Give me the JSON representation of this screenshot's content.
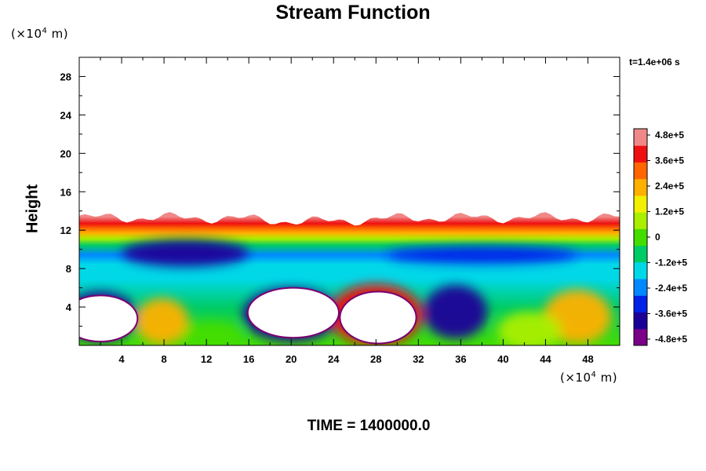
{
  "chart_data": {
    "type": "heatmap",
    "title": "Stream Function",
    "ylabel": "Height",
    "y_unit": {
      "prefix": "(×10",
      "exp": "4",
      "suffix": " m)"
    },
    "x_unit": {
      "prefix": "(×10",
      "exp": "4",
      "suffix": " m)"
    },
    "timestamp": "t=1.4e+06 s",
    "footer": "TIME = 1400000.0",
    "xlim": [
      0,
      51
    ],
    "ylim": [
      0,
      30
    ],
    "x_ticks": [
      "4",
      "8",
      "12",
      "16",
      "20",
      "24",
      "28",
      "32",
      "36",
      "40",
      "44",
      "48"
    ],
    "y_ticks": [
      "4",
      "8",
      "12",
      "16",
      "20",
      "24",
      "28"
    ],
    "colorbar": {
      "range": [
        -480000,
        480000
      ],
      "labels": [
        "4.8e+5",
        "3.6e+5",
        "2.4e+5",
        "1.2e+5",
        "0",
        "-1.2e+5",
        "-2.4e+5",
        "-3.6e+5",
        "-4.8e+5"
      ],
      "colors": [
        "#7a0088",
        "#1b0098",
        "#0022e6",
        "#0088ff",
        "#00d8e8",
        "#00cc66",
        "#44dd00",
        "#aaee00",
        "#f0f000",
        "#ffb000",
        "#ff6600",
        "#ee1010",
        "#f08888"
      ]
    },
    "field_top_height": 14,
    "bands": [
      {
        "y": 13.5,
        "value": 480000
      },
      {
        "y": 12.8,
        "value": 400000
      },
      {
        "y": 12.3,
        "value": 300000
      },
      {
        "y": 11.8,
        "value": 200000
      },
      {
        "y": 11.2,
        "value": 80000
      },
      {
        "y": 10.5,
        "value": -100000
      },
      {
        "y": 9.5,
        "value": -280000
      },
      {
        "y": 8.5,
        "value": -200000
      },
      {
        "y": 7,
        "value": -140000
      },
      {
        "y": 4,
        "value": -80000
      },
      {
        "y": 0,
        "value": 0
      }
    ],
    "blobs": [
      {
        "x": 10,
        "y": 9.6,
        "rx": 6,
        "ry": 1.4,
        "value": -380000
      },
      {
        "x": 38,
        "y": 9.4,
        "rx": 9,
        "ry": 0.9,
        "value": -340000
      },
      {
        "x": 2,
        "y": 3,
        "rx": 3.5,
        "ry": 2.6,
        "value": -420000
      },
      {
        "x": 20,
        "y": 3.2,
        "rx": 4.6,
        "ry": 2.8,
        "value": -420000
      },
      {
        "x": 28,
        "y": 3.2,
        "rx": 4.4,
        "ry": 3.2,
        "value": 420000
      },
      {
        "x": 35.5,
        "y": 3.5,
        "rx": 3,
        "ry": 2.8,
        "value": -420000
      },
      {
        "x": 7.8,
        "y": 2.5,
        "rx": 2.5,
        "ry": 2.4,
        "value": 220000
      },
      {
        "x": 47,
        "y": 3,
        "rx": 3.2,
        "ry": 2.8,
        "value": 240000
      },
      {
        "x": 12.5,
        "y": 1,
        "rx": 2.8,
        "ry": 1.5,
        "value": 30000
      },
      {
        "x": 42.5,
        "y": 1.5,
        "rx": 3,
        "ry": 2,
        "value": 40000
      }
    ],
    "holes": [
      {
        "x": 2,
        "y": 2.8,
        "rx": 3.5,
        "ry": 2.4
      },
      {
        "x": 20.2,
        "y": 3.4,
        "rx": 4.3,
        "ry": 2.6
      },
      {
        "x": 28.2,
        "y": 2.9,
        "rx": 3.6,
        "ry": 2.7
      }
    ]
  }
}
